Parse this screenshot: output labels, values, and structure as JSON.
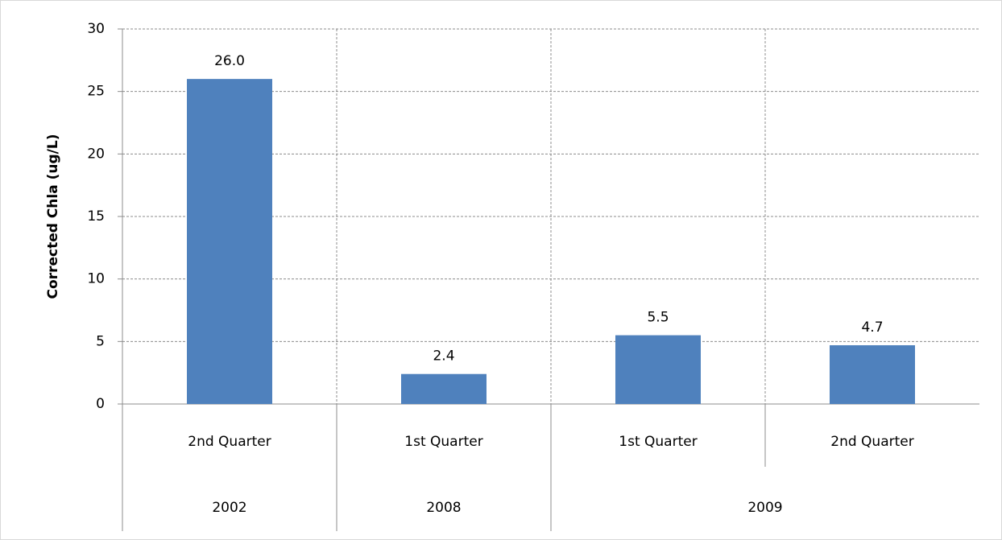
{
  "chart_data": {
    "type": "bar",
    "y_label": "Corrected Chla (ug/L)",
    "color": "#4f81bd",
    "groups": [
      {
        "label": "2002",
        "categories": [
          "2nd Quarter"
        ],
        "values": [
          26.0
        ],
        "value_labels": [
          "26.0"
        ]
      },
      {
        "label": "2008",
        "categories": [
          "1st Quarter"
        ],
        "values": [
          2.4
        ],
        "value_labels": [
          "2.4"
        ]
      },
      {
        "label": "2009",
        "categories": [
          "1st Quarter",
          "2nd Quarter"
        ],
        "values": [
          5.5,
          4.7
        ],
        "value_labels": [
          "5.5",
          "4.7"
        ]
      }
    ],
    "ylim": [
      0,
      30
    ],
    "yticks": [
      0,
      5,
      10,
      15,
      20,
      25,
      30
    ],
    "grid": true
  }
}
